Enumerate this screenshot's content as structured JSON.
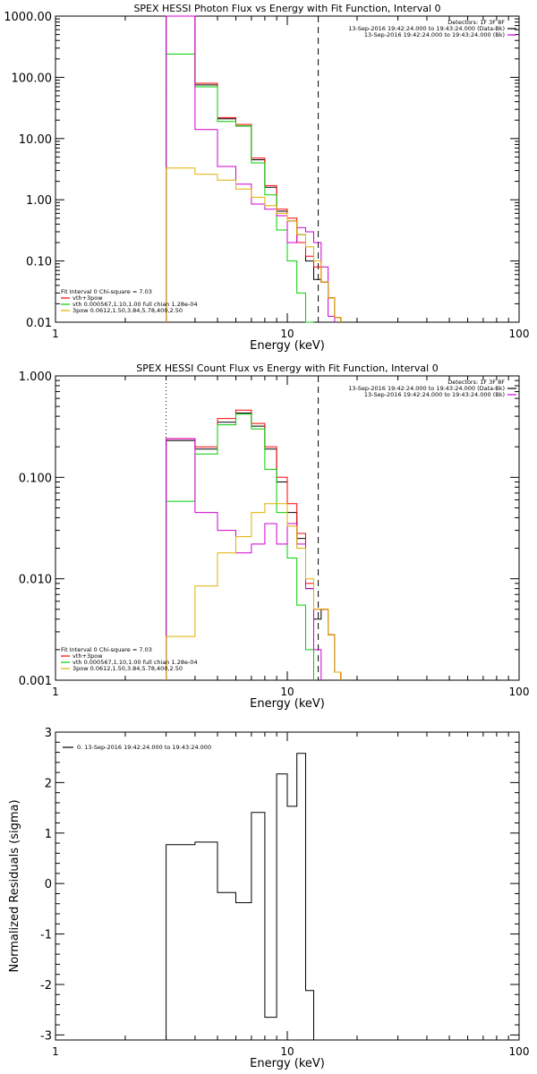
{
  "colors": {
    "black": "#000000",
    "red": "#ff0000",
    "magenta": "#d000d0",
    "green": "#00d000",
    "yellow": "#e0b000"
  },
  "chart_data": [
    {
      "type": "line",
      "title": "SPEX HESSI Photon Flux vs Energy with Fit Function, Interval 0",
      "xlabel": "Energy (keV)",
      "ylabel": "",
      "xscale": "log",
      "yscale": "log",
      "xlim": [
        1,
        100
      ],
      "ylim": [
        0.01,
        1000
      ],
      "xticks": [
        {
          "value": 1,
          "label": "1"
        },
        {
          "value": 10,
          "label": "10"
        },
        {
          "value": 100,
          "label": "100"
        }
      ],
      "yticks": [
        {
          "value": 0.01,
          "label": "0.01"
        },
        {
          "value": 0.1,
          "label": "0.10"
        },
        {
          "value": 1,
          "label": "1.00"
        },
        {
          "value": 10,
          "label": "10.00"
        },
        {
          "value": 100,
          "label": "100.00"
        },
        {
          "value": 1000,
          "label": "1000.00"
        }
      ],
      "vlines": [
        {
          "x": 3.0,
          "style": "dotted"
        },
        {
          "x": 13.6,
          "style": "dashed"
        }
      ],
      "legend_top": [
        {
          "text": "Detectors: 1F 3F 8F",
          "color": "#000000"
        },
        {
          "text": "13-Sep-2016 19:42:24.000 to 19:43:24.000 (Data-Bk)",
          "color": "#000000"
        },
        {
          "text": "13-Sep-2016 19:42:24.000 to 19:43:24.000 (Bk)",
          "color": "#d000d0"
        }
      ],
      "legend_bottom": [
        {
          "text": "Fit Interval  0   Chi-square = 7.03",
          "color": "#000000"
        },
        {
          "text": "vth+3pow",
          "color": "#ff0000"
        },
        {
          "text": "vth 0.000567,1.10,1.00   full chian 1.28e-04",
          "color": "#00d000"
        },
        {
          "text": "3pow 0.0612,1.50,3.84,5.78,400,2.50",
          "color": "#e0b000"
        }
      ],
      "edges": [
        3.0,
        4.0,
        5.0,
        6.0,
        7.0,
        8.0,
        9.0,
        10.0,
        11.0,
        12.0,
        13.0,
        14.0,
        15.0,
        16.0,
        17.0,
        18.0
      ],
      "series": [
        {
          "color": "#000000",
          "values": [
            1000,
            75,
            21,
            16,
            4.5,
            1.6,
            0.65,
            0.45,
            0.27,
            0.1,
            0.05,
            0.045,
            0.025,
            0.012,
            null
          ]
        },
        {
          "color": "#ff0000",
          "values": [
            1000,
            80,
            22,
            17,
            4.8,
            1.7,
            0.7,
            0.5,
            0.2,
            0.12,
            0.08,
            0.045,
            0.025,
            0.012,
            null
          ]
        },
        {
          "color": "#00d000",
          "values": [
            240,
            70,
            19,
            16,
            4.0,
            1.2,
            0.32,
            0.1,
            0.03,
            0.008,
            null,
            null,
            null,
            null,
            null
          ]
        },
        {
          "color": "#d000d0",
          "values": [
            1000,
            14,
            3.5,
            1.8,
            0.85,
            0.7,
            0.55,
            0.2,
            0.35,
            0.3,
            0.2,
            0.08,
            0.0125,
            null,
            null
          ]
        },
        {
          "color": "#e0b000",
          "values": [
            3.3,
            2.6,
            2.1,
            1.5,
            1.1,
            0.8,
            0.6,
            0.45,
            0.27,
            0.17,
            0.1,
            0.045,
            0.025,
            0.012,
            null
          ]
        }
      ]
    },
    {
      "type": "line",
      "title": "SPEX HESSI Count Flux vs Energy with Fit Function, Interval 0",
      "xlabel": "Energy (keV)",
      "ylabel": "",
      "xscale": "log",
      "yscale": "log",
      "xlim": [
        1,
        100
      ],
      "ylim": [
        0.001,
        1
      ],
      "xticks": [
        {
          "value": 1,
          "label": "1"
        },
        {
          "value": 10,
          "label": "10"
        },
        {
          "value": 100,
          "label": "100"
        }
      ],
      "yticks": [
        {
          "value": 0.001,
          "label": "0.001"
        },
        {
          "value": 0.01,
          "label": "0.010"
        },
        {
          "value": 0.1,
          "label": "0.100"
        },
        {
          "value": 1,
          "label": "1.000"
        }
      ],
      "vlines": [
        {
          "x": 3.0,
          "style": "dotted"
        },
        {
          "x": 13.6,
          "style": "dashed"
        }
      ],
      "legend_top": [
        {
          "text": "Detectors: 1F 3F 8F",
          "color": "#000000"
        },
        {
          "text": "13-Sep-2016 19:42:24.000 to 19:43:24.000 (Data-Bk)",
          "color": "#000000"
        },
        {
          "text": "13-Sep-2016 19:42:24.000 to 19:43:24.000 (Bk)",
          "color": "#d000d0"
        }
      ],
      "legend_bottom": [
        {
          "text": "Fit Interval  0   Chi-square = 7.03",
          "color": "#000000"
        },
        {
          "text": "vth+3pow",
          "color": "#ff0000"
        },
        {
          "text": "vth 0.000567,1.10,1.00   full chian 1.28e-04",
          "color": "#00d000"
        },
        {
          "text": "3pow 0.0612,1.50,3.84,5.78,400,2.50",
          "color": "#e0b000"
        }
      ],
      "edges": [
        3.0,
        4.0,
        5.0,
        6.0,
        7.0,
        8.0,
        9.0,
        10.0,
        11.0,
        12.0,
        13.0,
        14.0,
        15.0,
        16.0,
        17.0,
        18.0
      ],
      "series": [
        {
          "color": "#000000",
          "values": [
            0.23,
            0.19,
            0.35,
            0.43,
            0.32,
            0.19,
            0.09,
            0.045,
            0.025,
            0.008,
            0.004,
            0.005,
            0.0028,
            0.0012,
            null
          ]
        },
        {
          "color": "#ff0000",
          "values": [
            0.24,
            0.2,
            0.38,
            0.46,
            0.34,
            0.2,
            0.1,
            0.055,
            0.028,
            0.009,
            0.005,
            0.005,
            0.0028,
            0.0012,
            null
          ]
        },
        {
          "color": "#00d000",
          "values": [
            0.058,
            0.17,
            0.33,
            0.42,
            0.3,
            0.12,
            0.045,
            0.016,
            0.0055,
            0.002,
            null,
            null,
            null,
            null,
            null
          ]
        },
        {
          "color": "#d000d0",
          "values": [
            0.24,
            0.045,
            0.03,
            0.018,
            0.022,
            0.035,
            0.022,
            0.035,
            0.022,
            0.008,
            0.002,
            null,
            null,
            null,
            null
          ]
        },
        {
          "color": "#e0b000",
          "values": [
            0.0027,
            0.0085,
            0.018,
            0.026,
            0.045,
            0.055,
            0.055,
            0.033,
            0.02,
            0.01,
            0.005,
            0.005,
            0.0028,
            0.0012,
            null
          ]
        }
      ]
    },
    {
      "type": "line",
      "title": "",
      "xlabel": "Energy (keV)",
      "ylabel": "Normalized Residuals (sigma)",
      "xscale": "log",
      "yscale": "linear",
      "xlim": [
        1,
        100
      ],
      "ylim": [
        -3.1,
        3.0
      ],
      "xticks": [
        {
          "value": 1,
          "label": "1"
        },
        {
          "value": 10,
          "label": "10"
        },
        {
          "value": 100,
          "label": "100"
        }
      ],
      "yticks": [
        {
          "value": -3,
          "label": "-3"
        },
        {
          "value": -2,
          "label": "-2"
        },
        {
          "value": -1,
          "label": "-1"
        },
        {
          "value": 0,
          "label": "0"
        },
        {
          "value": 1,
          "label": "1"
        },
        {
          "value": 2,
          "label": "2"
        },
        {
          "value": 3,
          "label": "3"
        }
      ],
      "legend_top_left": [
        {
          "text": "0. 13-Sep-2016 19:42:24.000 to 19:43:24.000",
          "color": "#000000"
        }
      ],
      "edges": [
        3.0,
        4.0,
        5.0,
        6.0,
        7.0,
        8.0,
        9.0,
        10.0,
        11.0,
        12.0,
        13.0,
        14.0
      ],
      "series": [
        {
          "color": "#000000",
          "values": [
            0.77,
            0.82,
            -0.18,
            -0.38,
            1.41,
            -2.65,
            2.17,
            1.53,
            2.58,
            -2.12,
            null
          ]
        }
      ]
    }
  ]
}
